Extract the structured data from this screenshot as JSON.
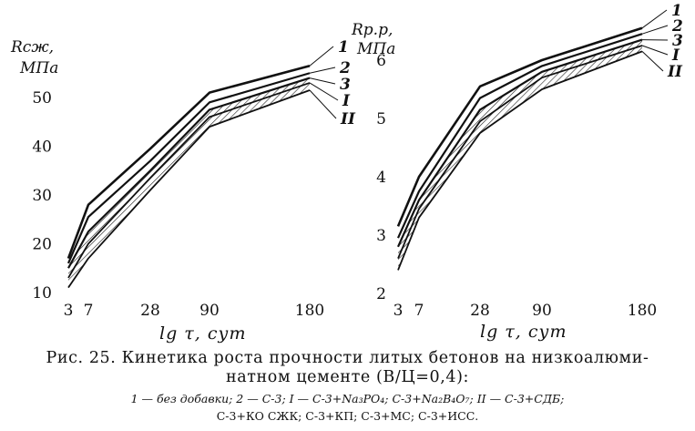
{
  "caption": {
    "line1": "Рис. 25. Кинетика роста прочности литых бетонов на низкоалюми-",
    "line2": "натном цементе (В/Ц=0,4):",
    "line3": "1 — без добавки; 2 — С-3; I — С-3+Na₃PO₄; С-3+Na₂B₄O₇; II — С-3+СДБ;",
    "line4": "С-3+КО СЖК; С-3+КП; С-3+МС; С-3+ИСС."
  },
  "chart_data": [
    {
      "type": "line",
      "ylabel_line1": "Rсж,",
      "ylabel_line2": "МПа",
      "xlabel": "lg τ, сут",
      "x_ticks": [
        "3",
        "7",
        "28",
        "90",
        "180"
      ],
      "y_ticks": [
        10,
        20,
        30,
        40,
        50
      ],
      "ylim": [
        10,
        58
      ],
      "series": [
        {
          "name": "1",
          "values": [
            17,
            28,
            39.5,
            51,
            56.5
          ]
        },
        {
          "name": "2",
          "values": [
            16,
            25.5,
            37,
            49,
            55
          ]
        },
        {
          "name": "3",
          "values": [
            15,
            22.5,
            35,
            47.5,
            54
          ]
        },
        {
          "name": "I",
          "values": [
            13,
            20,
            33.5,
            46,
            53
          ]
        },
        {
          "name": "II",
          "values": [
            11,
            17,
            31,
            44,
            51.5
          ]
        }
      ]
    },
    {
      "type": "line",
      "ylabel_line1": "Rр.р,",
      "ylabel_line2": "МПа",
      "xlabel": "lg τ, сут",
      "x_ticks": [
        "3",
        "7",
        "28",
        "90",
        "180"
      ],
      "y_ticks": [
        2,
        3,
        4,
        5,
        6
      ],
      "ylim": [
        2,
        6.7
      ],
      "series": [
        {
          "name": "1",
          "values": [
            3.15,
            4.0,
            5.55,
            6.0,
            6.55
          ]
        },
        {
          "name": "2",
          "values": [
            2.95,
            3.75,
            5.35,
            5.9,
            6.45
          ]
        },
        {
          "name": "3",
          "values": [
            2.8,
            3.6,
            5.15,
            5.8,
            6.35
          ]
        },
        {
          "name": "I",
          "values": [
            2.6,
            3.45,
            4.95,
            5.7,
            6.25
          ]
        },
        {
          "name": "II",
          "values": [
            2.4,
            3.3,
            4.75,
            5.5,
            6.15
          ]
        }
      ]
    }
  ]
}
